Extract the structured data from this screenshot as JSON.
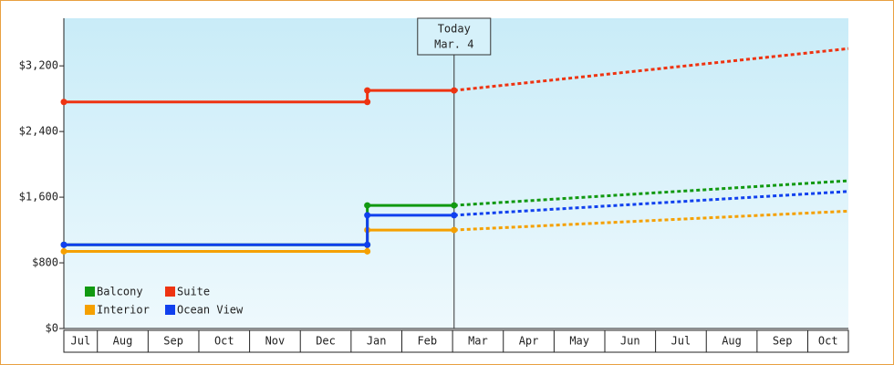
{
  "chart_data": {
    "type": "line",
    "ylim": [
      0,
      3780
    ],
    "yticks": [
      {
        "value": 0,
        "label": "$0"
      },
      {
        "value": 800,
        "label": "$800"
      },
      {
        "value": 1600,
        "label": "$1,600"
      },
      {
        "value": 2400,
        "label": "$2,400"
      },
      {
        "value": 3200,
        "label": "$3,200"
      }
    ],
    "xlim": [
      0.34,
      15.8
    ],
    "months": [
      "Jul",
      "Aug",
      "Sep",
      "Oct",
      "Nov",
      "Dec",
      "Jan",
      "Feb",
      "Mar",
      "Apr",
      "May",
      "Jun",
      "Jul",
      "Aug",
      "Sep",
      "Oct"
    ],
    "x": [
      0.34,
      6.32,
      6.32,
      8.03
    ],
    "forecast_x": [
      8.03,
      15.8
    ],
    "today": {
      "x": 8.03,
      "label": [
        "Today",
        "Mar. 4"
      ]
    },
    "legend": "lower left",
    "series": [
      {
        "name": "Balcony",
        "color": "#119911",
        "values": [
          1020,
          1020,
          1500,
          1500
        ],
        "forecast": [
          1500,
          1800
        ]
      },
      {
        "name": "Suite",
        "color": "#ee3311",
        "values": [
          2760,
          2760,
          2900,
          2900
        ],
        "forecast": [
          2900,
          3410
        ]
      },
      {
        "name": "Interior",
        "color": "#f5a000",
        "values": [
          940,
          940,
          1200,
          1200
        ],
        "forecast": [
          1200,
          1430
        ]
      },
      {
        "name": "Ocean View",
        "color": "#1040ee",
        "values": [
          1020,
          1020,
          1380,
          1380
        ],
        "forecast": [
          1380,
          1670
        ]
      }
    ]
  }
}
